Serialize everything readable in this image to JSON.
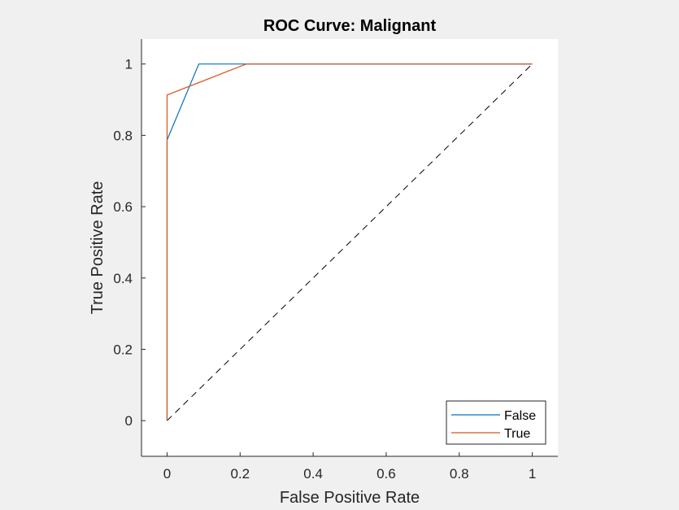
{
  "chart_data": {
    "type": "line",
    "title": "ROC Curve: Malignant",
    "xlabel": "False Positive Rate",
    "ylabel": "True Positive Rate",
    "xlim": [
      -0.07,
      1.07
    ],
    "ylim": [
      -0.1,
      1.07
    ],
    "xticks": [
      0,
      0.2,
      0.4,
      0.6,
      0.8,
      1
    ],
    "xtick_labels": [
      "0",
      "0.2",
      "0.4",
      "0.6",
      "0.8",
      "1"
    ],
    "yticks": [
      0,
      0.2,
      0.4,
      0.6,
      0.8,
      1
    ],
    "ytick_labels": [
      "0",
      "0.2",
      "0.4",
      "0.6",
      "0.8",
      "1"
    ],
    "grid": false,
    "legend_position": "bottom-right",
    "series": [
      {
        "name": "False",
        "color": "#0072BD",
        "x": [
          0,
          0,
          0,
          0.087,
          1
        ],
        "y": [
          0,
          0.55,
          0.787,
          1,
          1
        ]
      },
      {
        "name": "True",
        "color": "#D95319",
        "x": [
          0,
          0,
          0,
          0.217,
          1
        ],
        "y": [
          0,
          0.65,
          0.913,
          1,
          1
        ]
      }
    ],
    "reference_line": {
      "x": [
        0,
        1
      ],
      "y": [
        0,
        1
      ],
      "color": "#000000",
      "style": "dashed"
    }
  }
}
